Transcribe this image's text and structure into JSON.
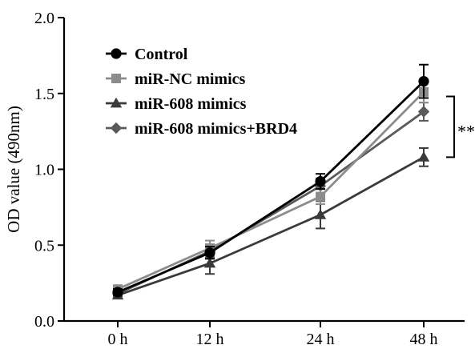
{
  "chart_data": {
    "type": "line",
    "title": "",
    "xlabel": "",
    "ylabel": "OD value (490nm)",
    "categories": [
      "0 h",
      "12 h",
      "24 h",
      "48 h"
    ],
    "yticks": [
      "0.0",
      "0.5",
      "1.0",
      "1.5",
      "2.0"
    ],
    "ylim": [
      0,
      2.0
    ],
    "grid": false,
    "legend_position": "top-left",
    "series": [
      {
        "name": "Control",
        "values": [
          0.19,
          0.45,
          0.92,
          1.58
        ],
        "errors": [
          0.02,
          0.04,
          0.05,
          0.11
        ],
        "marker": "circle",
        "color": "#000000"
      },
      {
        "name": "miR-NC mimics",
        "values": [
          0.21,
          0.48,
          0.82,
          1.51
        ],
        "errors": [
          0.02,
          0.05,
          0.05,
          0.07
        ],
        "marker": "square",
        "color": "#8c8c8c"
      },
      {
        "name": "miR-608 mimics",
        "values": [
          0.17,
          0.38,
          0.7,
          1.08
        ],
        "errors": [
          0.02,
          0.07,
          0.09,
          0.06
        ],
        "marker": "triangle",
        "color": "#3a3a3a"
      },
      {
        "name": "miR-608 mimics+BRD4",
        "values": [
          0.18,
          0.46,
          0.89,
          1.38
        ],
        "errors": [
          0.02,
          0.04,
          0.05,
          0.06
        ],
        "marker": "diamond",
        "color": "#5a5a5a"
      }
    ],
    "annotations": [
      {
        "text": "**",
        "bracket_y": [
          1.08,
          1.48
        ]
      }
    ]
  }
}
